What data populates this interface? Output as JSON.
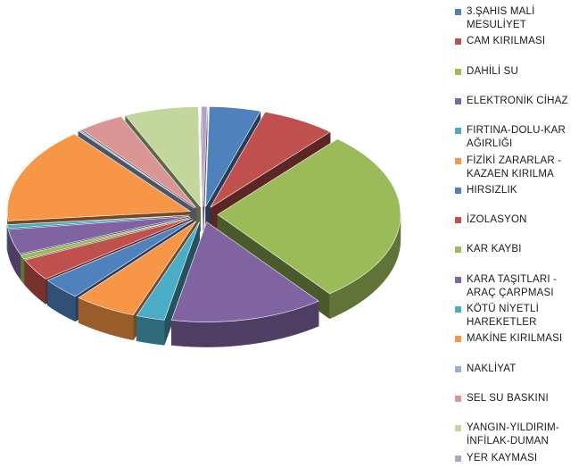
{
  "chart_data": {
    "type": "pie",
    "variant": "3d-exploded",
    "legend_position": "right",
    "categories": [
      "3.ŞAHIS MALİ MESULİYET",
      "CAM KIRILMASI",
      "DAHİLİ SU",
      "ELEKTRONİK CİHAZ",
      "FIRTINA-DOLU-KAR AĞIRLIĞI",
      "FİZİKİ ZARARLAR - KAZAEN KIRILMA",
      "HIRSIZLIK",
      "İZOLASYON",
      "KAR KAYBI",
      "KARA TAŞITLARI - ARAÇ ÇARPMASI",
      "KÖTÜ NİYETLİ HAREKETLER",
      "MAKİNE KIRILMASI",
      "NAKLİYAT",
      "SEL SU BASKINI",
      "YANGIN-YILDIRIM-İNFİLAK-DUMAN",
      "YER KAYMASI"
    ],
    "values": [
      4.5,
      6.5,
      28.0,
      13.5,
      2.5,
      5.5,
      3.5,
      3.5,
      0.7,
      4.0,
      0.6,
      15.5,
      0.2,
      4.0,
      6.5,
      0.5
    ],
    "colors": [
      "#4F81BD",
      "#C0504D",
      "#9BBB59",
      "#8064A2",
      "#4BACC6",
      "#F79646",
      "#4F81BD",
      "#C0504D",
      "#9BBB59",
      "#8064A2",
      "#4BACC6",
      "#F79646",
      "#95B3D7",
      "#D99694",
      "#C3D69B",
      "#B3A2C7"
    ],
    "legend_lines": [
      [
        "3.ŞAHIS MALİ",
        "MESULİYET"
      ],
      [
        "CAM KIRILMASI"
      ],
      [
        "DAHİLİ SU"
      ],
      [
        "ELEKTRONİK CİHAZ"
      ],
      [
        "FIRTINA-DOLU-KAR",
        "AĞIRLIĞI"
      ],
      [
        "FİZİKİ ZARARLAR -",
        "KAZAEN KIRILMA"
      ],
      [
        "HIRSIZLIK"
      ],
      [
        "İZOLASYON"
      ],
      [
        "KAR KAYBI"
      ],
      [
        "KARA TAŞITLARI -",
        "ARAÇ ÇARPMASI"
      ],
      [
        "KÖTÜ NİYETLİ",
        "HAREKETLER"
      ],
      [
        "MAKİNE KIRILMASI"
      ],
      [
        "NAKLİYAT"
      ],
      [
        "SEL SU BASKINI"
      ],
      [
        "YANGIN-YILDIRIM-",
        "İNFİLAK-DUMAN"
      ],
      [
        "YER KAYMASI"
      ]
    ]
  }
}
